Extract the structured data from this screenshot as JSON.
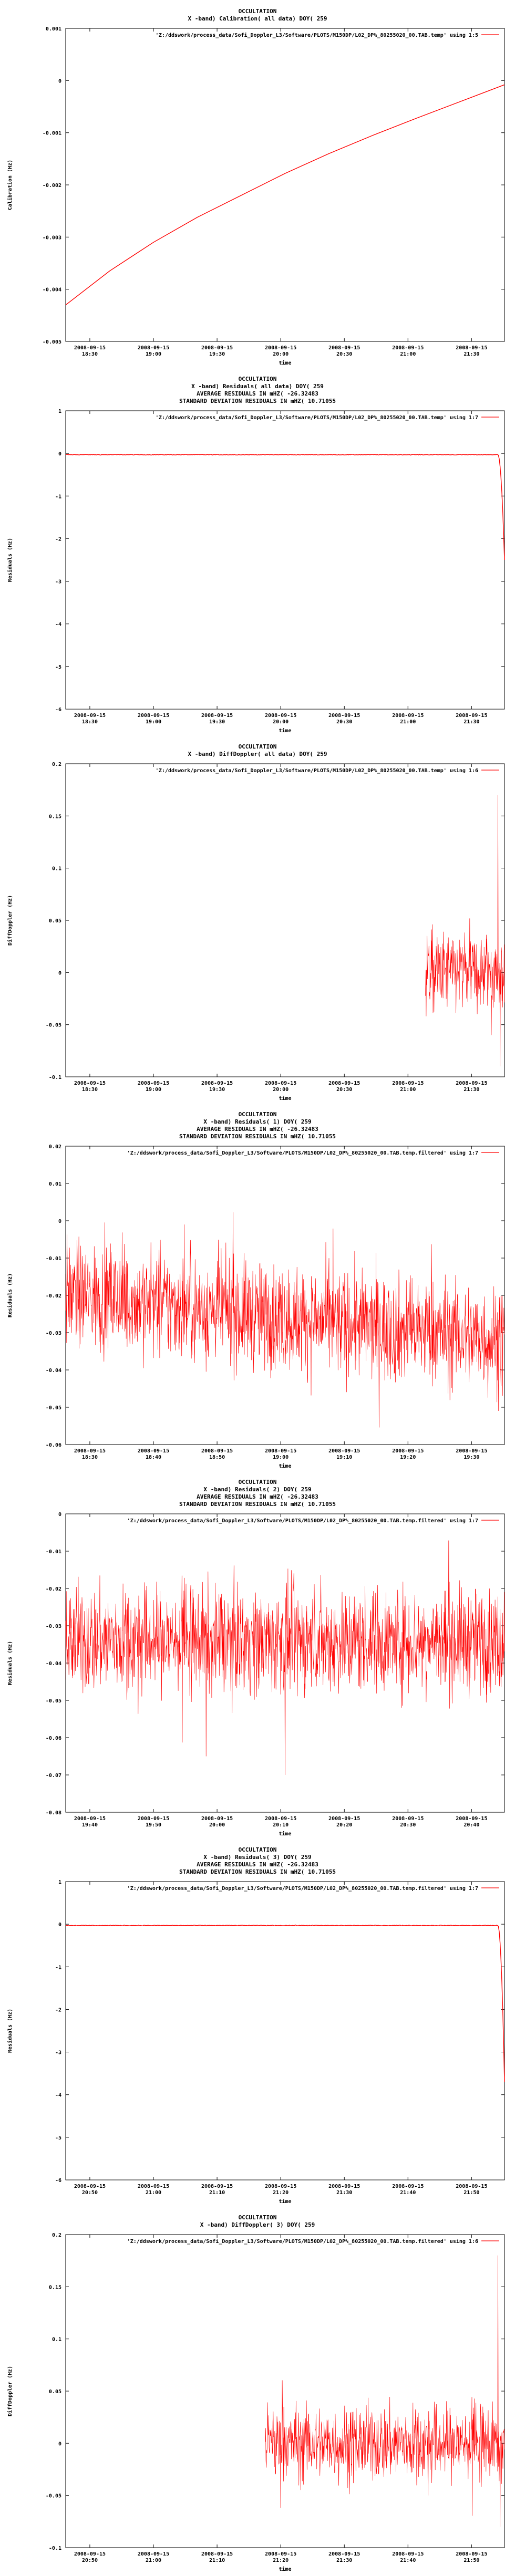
{
  "chart_data": [
    {
      "type": "line",
      "title_lines": [
        "OCCULTATION",
        "X -band) Calibration( all data) DOY( 259"
      ],
      "legend": "'Z:/ddswork/process_data/Sofi_Doppler_L3/Software/PLOTS/M150DP/L02_DP%_80255020_00.TAB.temp' using 1:5",
      "ylabel": "Calibration (Hz)",
      "xlabel": "time",
      "ylim": [
        -0.005,
        0.001
      ],
      "yticks": [
        "0.001",
        "0",
        "-0.001",
        "-0.002",
        "-0.003",
        "-0.004",
        "-0.005"
      ],
      "xticks": [
        [
          "2008-09-15",
          "18:30"
        ],
        [
          "2008-09-15",
          "19:00"
        ],
        [
          "2008-09-15",
          "19:30"
        ],
        [
          "2008-09-15",
          "20:00"
        ],
        [
          "2008-09-15",
          "20:30"
        ],
        [
          "2008-09-15",
          "21:00"
        ],
        [
          "2008-09-15",
          "21:30"
        ]
      ],
      "xtick_pos": [
        0.055,
        0.2,
        0.345,
        0.49,
        0.635,
        0.78,
        0.925
      ],
      "series_kind": "curve",
      "series_points": [
        [
          0,
          -0.0043
        ],
        [
          0.1,
          -0.00365
        ],
        [
          0.2,
          -0.0031
        ],
        [
          0.3,
          -0.00262
        ],
        [
          0.4,
          -0.0022
        ],
        [
          0.5,
          -0.00178
        ],
        [
          0.6,
          -0.0014
        ],
        [
          0.7,
          -0.00105
        ],
        [
          0.8,
          -0.00072
        ],
        [
          0.9,
          -0.0004
        ],
        [
          1,
          -8e-05
        ]
      ]
    },
    {
      "type": "line",
      "title_lines": [
        "OCCULTATION",
        "X -band) Residuals( all data) DOY( 259",
        "AVERAGE RESIDUALS IN mHZ( -26.32483",
        "STANDARD DEVIATION RESIDUALS IN mHZ( 10.71055"
      ],
      "legend": "'Z:/ddswork/process_data/Sofi_Doppler_L3/Software/PLOTS/M150DP/L02_DP%_80255020_00.TAB.temp' using 1:7",
      "ylabel": "Residuals (Hz)",
      "xlabel": "time",
      "ylim": [
        -6,
        1
      ],
      "yticks": [
        "1",
        "0",
        "-1",
        "-2",
        "-3",
        "-4",
        "-5",
        "-6"
      ],
      "xticks": [
        [
          "2008-09-15",
          "18:30"
        ],
        [
          "2008-09-15",
          "19:00"
        ],
        [
          "2008-09-15",
          "19:30"
        ],
        [
          "2008-09-15",
          "20:00"
        ],
        [
          "2008-09-15",
          "20:30"
        ],
        [
          "2008-09-15",
          "21:00"
        ],
        [
          "2008-09-15",
          "21:30"
        ]
      ],
      "xtick_pos": [
        0.055,
        0.2,
        0.345,
        0.49,
        0.635,
        0.78,
        0.925
      ],
      "series_kind": "flat_drop",
      "series_level": -0.03,
      "series_drop_start": 0.985,
      "series_drop_to": -2.5
    },
    {
      "type": "line",
      "title_lines": [
        "OCCULTATION",
        "X -band) DiffDoppler( all data) DOY( 259"
      ],
      "legend": "'Z:/ddswork/process_data/Sofi_Doppler_L3/Software/PLOTS/M150DP/L02_DP%_80255020_00.TAB.temp' using 1:6",
      "ylabel": "DiffDoppler (Hz)",
      "xlabel": "time",
      "ylim": [
        -0.1,
        0.2
      ],
      "yticks": [
        "0.2",
        "0.15",
        "0.1",
        "0.05",
        "0",
        "-0.05",
        "-0.1"
      ],
      "xticks": [
        [
          "2008-09-15",
          "18:30"
        ],
        [
          "2008-09-15",
          "19:00"
        ],
        [
          "2008-09-15",
          "19:30"
        ],
        [
          "2008-09-15",
          "20:00"
        ],
        [
          "2008-09-15",
          "20:30"
        ],
        [
          "2008-09-15",
          "21:00"
        ],
        [
          "2008-09-15",
          "21:30"
        ]
      ],
      "xtick_pos": [
        0.055,
        0.2,
        0.345,
        0.49,
        0.635,
        0.78,
        0.925
      ],
      "series_kind": "noise",
      "series_start": 0.82,
      "series_end": 1.0,
      "series_mean": 0.0,
      "series_amp": 0.03,
      "series_spikes": [
        [
          0.985,
          0.17
        ],
        [
          0.97,
          -0.06
        ],
        [
          0.99,
          -0.09
        ]
      ]
    },
    {
      "type": "line",
      "title_lines": [
        "OCCULTATION",
        "X -band) Residuals( 1) DOY( 259",
        "AVERAGE RESIDUALS IN mHZ( -26.32483",
        "STANDARD DEVIATION RESIDUALS IN mHZ( 10.71055"
      ],
      "legend": "'Z:/ddswork/process_data/Sofi_Doppler_L3/Software/PLOTS/M150DP/L02_DP%_80255020_00.TAB.temp.filtered' using 1:7",
      "ylabel": "Residuals (Hz)",
      "xlabel": "time",
      "ylim": [
        -0.06,
        0.02
      ],
      "yticks": [
        "0.02",
        "0.01",
        "0",
        "-0.01",
        "-0.02",
        "-0.03",
        "-0.04",
        "-0.05",
        "-0.06"
      ],
      "xticks": [
        [
          "2008-09-15",
          "18:30"
        ],
        [
          "2008-09-15",
          "18:40"
        ],
        [
          "2008-09-15",
          "18:50"
        ],
        [
          "2008-09-15",
          "19:00"
        ],
        [
          "2008-09-15",
          "19:10"
        ],
        [
          "2008-09-15",
          "19:20"
        ],
        [
          "2008-09-15",
          "19:30"
        ]
      ],
      "xtick_pos": [
        0.055,
        0.2,
        0.345,
        0.49,
        0.635,
        0.78,
        0.925
      ],
      "series_kind": "noise",
      "series_start": 0.0,
      "series_end": 1.0,
      "series_mean_start": -0.02,
      "series_mean_end": -0.032,
      "series_amp": 0.011
    },
    {
      "type": "line",
      "title_lines": [
        "OCCULTATION",
        "X -band) Residuals( 2) DOY( 259",
        "AVERAGE RESIDUALS IN mHZ( -26.32483",
        "STANDARD DEVIATION RESIDUALS IN mHZ( 10.71055"
      ],
      "legend": "'Z:/ddswork/process_data/Sofi_Doppler_L3/Software/PLOTS/M150DP/L02_DP%_80255020_00.TAB.temp.filtered' using 1:7",
      "ylabel": "Residuals (Hz)",
      "xlabel": "time",
      "ylim": [
        -0.08,
        0
      ],
      "yticks": [
        "0",
        "-0.01",
        "-0.02",
        "-0.03",
        "-0.04",
        "-0.05",
        "-0.06",
        "-0.07",
        "-0.08"
      ],
      "xticks": [
        [
          "2008-09-15",
          "19:40"
        ],
        [
          "2008-09-15",
          "19:50"
        ],
        [
          "2008-09-15",
          "20:00"
        ],
        [
          "2008-09-15",
          "20:10"
        ],
        [
          "2008-09-15",
          "20:20"
        ],
        [
          "2008-09-15",
          "20:30"
        ],
        [
          "2008-09-15",
          "20:40"
        ]
      ],
      "xtick_pos": [
        0.055,
        0.2,
        0.345,
        0.49,
        0.635,
        0.78,
        0.925
      ],
      "series_kind": "noise",
      "series_start": 0.0,
      "series_end": 1.0,
      "series_mean_start": -0.034,
      "series_mean_end": -0.034,
      "series_amp": 0.011,
      "series_spikes": [
        [
          0.5,
          -0.07
        ],
        [
          0.32,
          -0.065
        ]
      ]
    },
    {
      "type": "line",
      "title_lines": [
        "OCCULTATION",
        "X -band) Residuals( 3) DOY( 259",
        "AVERAGE RESIDUALS IN mHZ( -26.32483",
        "STANDARD DEVIATION RESIDUALS IN mHZ( 10.71055"
      ],
      "legend": "'Z:/ddswork/process_data/Sofi_Doppler_L3/Software/PLOTS/M150DP/L02_DP%_80255020_00.TAB.temp.filtered' using 1:7",
      "ylabel": "Residuals (Hz)",
      "xlabel": "time",
      "ylim": [
        -6,
        1
      ],
      "yticks": [
        "1",
        "0",
        "-1",
        "-2",
        "-3",
        "-4",
        "-5",
        "-6"
      ],
      "xticks": [
        [
          "2008-09-15",
          "20:50"
        ],
        [
          "2008-09-15",
          "21:00"
        ],
        [
          "2008-09-15",
          "21:10"
        ],
        [
          "2008-09-15",
          "21:20"
        ],
        [
          "2008-09-15",
          "21:30"
        ],
        [
          "2008-09-15",
          "21:40"
        ],
        [
          "2008-09-15",
          "21:50"
        ]
      ],
      "xtick_pos": [
        0.055,
        0.2,
        0.345,
        0.49,
        0.635,
        0.78,
        0.925
      ],
      "series_kind": "flat_drop",
      "series_level": -0.03,
      "series_drop_start": 0.985,
      "series_drop_to": -3.7
    },
    {
      "type": "line",
      "title_lines": [
        "OCCULTATION",
        "X -band) DiffDoppler( 3) DOY( 259"
      ],
      "legend": "'Z:/ddswork/process_data/Sofi_Doppler_L3/Software/PLOTS/M150DP/L02_DP%_80255020_00.TAB.temp.filtered' using 1:6",
      "ylabel": "DiffDoppler (Hz)",
      "xlabel": "time",
      "ylim": [
        -0.1,
        0.2
      ],
      "yticks": [
        "0.2",
        "0.15",
        "0.1",
        "0.05",
        "0",
        "-0.05",
        "-0.1"
      ],
      "xticks": [
        [
          "2008-09-15",
          "20:50"
        ],
        [
          "2008-09-15",
          "21:00"
        ],
        [
          "2008-09-15",
          "21:10"
        ],
        [
          "2008-09-15",
          "21:20"
        ],
        [
          "2008-09-15",
          "21:30"
        ],
        [
          "2008-09-15",
          "21:40"
        ],
        [
          "2008-09-15",
          "21:50"
        ]
      ],
      "xtick_pos": [
        0.055,
        0.2,
        0.345,
        0.49,
        0.635,
        0.78,
        0.925
      ],
      "series_kind": "noise",
      "series_start": 0.455,
      "series_end": 1.0,
      "series_mean": 0.0,
      "series_amp": 0.028,
      "series_spikes": [
        [
          0.985,
          0.18
        ],
        [
          0.99,
          -0.08
        ]
      ]
    }
  ],
  "colors": {
    "series": "#ff0000",
    "axis": "#000000",
    "title": "#000000",
    "background": "#ffffff"
  }
}
